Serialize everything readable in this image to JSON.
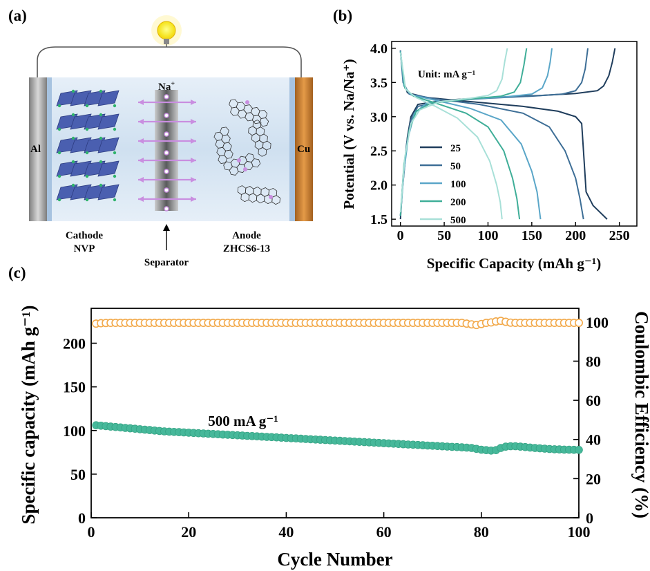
{
  "panels": {
    "a": {
      "label": "(a)",
      "cathode_label": [
        "Cathode",
        "NVP"
      ],
      "anode_label": [
        "Anode",
        "ZHCS6-13"
      ],
      "separator_label": "Separator",
      "ion_label": "Na",
      "ion_charge": "+",
      "left_collector_label": "Al",
      "right_collector_label": "Cu",
      "colors": {
        "electrolyte": "#dbe8f3",
        "al_collector": "#9a9a9a",
        "cu_collector": "#c47a2c",
        "nvp_polyhedra": "#4a5fb0",
        "ion": "#c98ee0",
        "bulb": "#f5e31c"
      },
      "icons": [
        "light-bulb-icon",
        "arrow-up-icon"
      ]
    },
    "b": {
      "label": "(b)"
    },
    "c": {
      "label": "(c)"
    }
  },
  "chart_data": [
    {
      "panel": "b",
      "type": "line",
      "xlabel": "Specific Capacity (mAh g⁻¹)",
      "ylabel": "Potential (V vs. Na/Na⁺)",
      "xlim": [
        -10,
        270
      ],
      "ylim": [
        1.4,
        4.1
      ],
      "xticks": [
        0,
        50,
        100,
        150,
        200,
        250
      ],
      "yticks": [
        1.5,
        2.0,
        2.5,
        3.0,
        3.5,
        4.0
      ],
      "annotation": "Unit: mA g⁻¹",
      "legend_position": "center-left",
      "series": [
        {
          "name": "25",
          "color": "#1f3d5c",
          "charge": [
            [
              0,
              1.5
            ],
            [
              2,
              1.9
            ],
            [
              5,
              2.3
            ],
            [
              8,
              2.7
            ],
            [
              12,
              3.0
            ],
            [
              20,
              3.18
            ],
            [
              50,
              3.24
            ],
            [
              100,
              3.28
            ],
            [
              160,
              3.31
            ],
            [
              200,
              3.34
            ],
            [
              225,
              3.38
            ],
            [
              232,
              3.45
            ],
            [
              238,
              3.6
            ],
            [
              242,
              3.8
            ],
            [
              245,
              4.0
            ]
          ],
          "discharge": [
            [
              0,
              3.97
            ],
            [
              3,
              3.55
            ],
            [
              8,
              3.35
            ],
            [
              30,
              3.28
            ],
            [
              80,
              3.22
            ],
            [
              140,
              3.15
            ],
            [
              180,
              3.08
            ],
            [
              200,
              3.0
            ],
            [
              207,
              2.9
            ],
            [
              209,
              2.5
            ],
            [
              212,
              1.9
            ],
            [
              220,
              1.7
            ],
            [
              236,
              1.5
            ]
          ]
        },
        {
          "name": "50",
          "color": "#3d6e96",
          "charge": [
            [
              0,
              1.55
            ],
            [
              3,
              2.1
            ],
            [
              7,
              2.6
            ],
            [
              12,
              2.95
            ],
            [
              20,
              3.15
            ],
            [
              50,
              3.23
            ],
            [
              100,
              3.27
            ],
            [
              150,
              3.3
            ],
            [
              185,
              3.33
            ],
            [
              200,
              3.38
            ],
            [
              207,
              3.5
            ],
            [
              211,
              3.7
            ],
            [
              214,
              4.0
            ]
          ],
          "discharge": [
            [
              0,
              3.97
            ],
            [
              3,
              3.5
            ],
            [
              10,
              3.33
            ],
            [
              40,
              3.26
            ],
            [
              90,
              3.18
            ],
            [
              140,
              3.05
            ],
            [
              170,
              2.85
            ],
            [
              188,
              2.5
            ],
            [
              200,
              2.1
            ],
            [
              205,
              1.8
            ],
            [
              209,
              1.5
            ]
          ]
        },
        {
          "name": "100",
          "color": "#5aa6c8",
          "charge": [
            [
              0,
              1.55
            ],
            [
              4,
              2.2
            ],
            [
              9,
              2.7
            ],
            [
              16,
              3.05
            ],
            [
              30,
              3.2
            ],
            [
              70,
              3.25
            ],
            [
              120,
              3.29
            ],
            [
              150,
              3.33
            ],
            [
              162,
              3.42
            ],
            [
              168,
              3.6
            ],
            [
              171,
              3.8
            ],
            [
              173,
              4.0
            ]
          ],
          "discharge": [
            [
              0,
              3.96
            ],
            [
              4,
              3.45
            ],
            [
              12,
              3.32
            ],
            [
              40,
              3.24
            ],
            [
              80,
              3.12
            ],
            [
              115,
              2.95
            ],
            [
              138,
              2.6
            ],
            [
              150,
              2.2
            ],
            [
              156,
              1.9
            ],
            [
              160,
              1.5
            ]
          ]
        },
        {
          "name": "200",
          "color": "#3fae98",
          "charge": [
            [
              0,
              1.55
            ],
            [
              4,
              2.3
            ],
            [
              10,
              2.8
            ],
            [
              18,
              3.08
            ],
            [
              35,
              3.2
            ],
            [
              80,
              3.26
            ],
            [
              115,
              3.3
            ],
            [
              130,
              3.36
            ],
            [
              137,
              3.5
            ],
            [
              141,
              3.75
            ],
            [
              144,
              4.0
            ]
          ],
          "discharge": [
            [
              0,
              3.95
            ],
            [
              5,
              3.42
            ],
            [
              15,
              3.3
            ],
            [
              40,
              3.2
            ],
            [
              75,
              3.05
            ],
            [
              100,
              2.85
            ],
            [
              118,
              2.5
            ],
            [
              128,
              2.1
            ],
            [
              133,
              1.8
            ],
            [
              136,
              1.5
            ]
          ]
        },
        {
          "name": "500",
          "color": "#a8e0d8",
          "charge": [
            [
              0,
              1.6
            ],
            [
              5,
              2.4
            ],
            [
              12,
              2.9
            ],
            [
              22,
              3.1
            ],
            [
              45,
              3.22
            ],
            [
              80,
              3.27
            ],
            [
              100,
              3.31
            ],
            [
              110,
              3.38
            ],
            [
              116,
              3.55
            ],
            [
              119,
              3.8
            ],
            [
              122,
              4.0
            ]
          ],
          "discharge": [
            [
              0,
              3.94
            ],
            [
              6,
              3.4
            ],
            [
              18,
              3.28
            ],
            [
              40,
              3.15
            ],
            [
              65,
              2.98
            ],
            [
              88,
              2.7
            ],
            [
              102,
              2.35
            ],
            [
              110,
              2.0
            ],
            [
              114,
              1.75
            ],
            [
              116,
              1.5
            ]
          ]
        }
      ]
    },
    {
      "panel": "c",
      "type": "scatter",
      "xlabel": "Cycle Number",
      "ylabel": "Specific capacity (mAh g⁻¹)",
      "ylabel_right": "Coulombic Efficiency (%)",
      "xlim": [
        0,
        100
      ],
      "ylim": [
        0,
        240
      ],
      "ylim_right": [
        0,
        107
      ],
      "xticks": [
        0,
        20,
        40,
        60,
        80,
        100
      ],
      "yticks": [
        0,
        50,
        100,
        150,
        200
      ],
      "yticks_right": [
        0,
        20,
        40,
        60,
        80,
        100
      ],
      "annotation": "500 mA g⁻¹",
      "series": [
        {
          "name": "Specific capacity",
          "axis": "left",
          "marker": "filled-circle",
          "color": "#46b89a",
          "x": [
            1,
            2,
            3,
            4,
            5,
            6,
            7,
            8,
            9,
            10,
            11,
            12,
            13,
            14,
            15,
            16,
            17,
            18,
            19,
            20,
            21,
            22,
            23,
            24,
            25,
            26,
            27,
            28,
            29,
            30,
            31,
            32,
            33,
            34,
            35,
            36,
            37,
            38,
            39,
            40,
            41,
            42,
            43,
            44,
            45,
            46,
            47,
            48,
            49,
            50,
            51,
            52,
            53,
            54,
            55,
            56,
            57,
            58,
            59,
            60,
            61,
            62,
            63,
            64,
            65,
            66,
            67,
            68,
            69,
            70,
            71,
            72,
            73,
            74,
            75,
            76,
            77,
            78,
            79,
            80,
            81,
            82,
            83,
            84,
            85,
            86,
            87,
            88,
            89,
            90,
            91,
            92,
            93,
            94,
            95,
            96,
            97,
            98,
            99,
            100
          ],
          "values": [
            106,
            105.5,
            105,
            104.5,
            104,
            103.5,
            103,
            102.5,
            102,
            101.5,
            101,
            100.5,
            100,
            99.5,
            99,
            98.7,
            98.4,
            98.1,
            97.8,
            97.5,
            97.2,
            96.9,
            96.6,
            96.3,
            96,
            95.7,
            95.4,
            95.1,
            94.8,
            94.5,
            94.2,
            93.9,
            93.6,
            93.3,
            93,
            92.7,
            92.4,
            92.1,
            91.8,
            91.5,
            91.2,
            90.9,
            90.6,
            90.3,
            90,
            89.7,
            89.4,
            89.1,
            88.8,
            88.5,
            88.2,
            87.9,
            87.6,
            87.3,
            87,
            86.7,
            86.4,
            86.1,
            85.8,
            85.5,
            85.2,
            84.9,
            84.6,
            84.3,
            84,
            83.7,
            83.4,
            83.1,
            82.8,
            82.5,
            82.2,
            81.9,
            81.6,
            81.3,
            81,
            80.7,
            80.4,
            80,
            79,
            78,
            77.5,
            77,
            77.5,
            80,
            81.5,
            82,
            82,
            81.5,
            81,
            80.5,
            80,
            79.6,
            79.2,
            78.8,
            78.5,
            78.3,
            78.1,
            78,
            77.9,
            77.8
          ]
        },
        {
          "name": "Coulombic Efficiency",
          "axis": "right",
          "marker": "open-circle",
          "color": "#f2a94a",
          "x": [
            1,
            2,
            3,
            4,
            5,
            6,
            7,
            8,
            9,
            10,
            11,
            12,
            13,
            14,
            15,
            16,
            17,
            18,
            19,
            20,
            21,
            22,
            23,
            24,
            25,
            26,
            27,
            28,
            29,
            30,
            31,
            32,
            33,
            34,
            35,
            36,
            37,
            38,
            39,
            40,
            41,
            42,
            43,
            44,
            45,
            46,
            47,
            48,
            49,
            50,
            51,
            52,
            53,
            54,
            55,
            56,
            57,
            58,
            59,
            60,
            61,
            62,
            63,
            64,
            65,
            66,
            67,
            68,
            69,
            70,
            71,
            72,
            73,
            74,
            75,
            76,
            77,
            78,
            79,
            80,
            81,
            82,
            83,
            84,
            85,
            86,
            87,
            88,
            89,
            90,
            91,
            92,
            93,
            94,
            95,
            96,
            97,
            98,
            99,
            100
          ],
          "values": [
            99.2,
            99.4,
            99.5,
            99.6,
            99.6,
            99.6,
            99.6,
            99.6,
            99.6,
            99.6,
            99.6,
            99.6,
            99.6,
            99.6,
            99.6,
            99.6,
            99.6,
            99.6,
            99.6,
            99.6,
            99.6,
            99.6,
            99.6,
            99.6,
            99.6,
            99.6,
            99.6,
            99.6,
            99.6,
            99.6,
            99.6,
            99.6,
            99.6,
            99.6,
            99.6,
            99.6,
            99.6,
            99.6,
            99.6,
            99.6,
            99.6,
            99.6,
            99.6,
            99.6,
            99.6,
            99.6,
            99.6,
            99.6,
            99.6,
            99.6,
            99.6,
            99.6,
            99.6,
            99.6,
            99.6,
            99.6,
            99.6,
            99.6,
            99.6,
            99.6,
            99.6,
            99.6,
            99.6,
            99.6,
            99.6,
            99.6,
            99.6,
            99.6,
            99.6,
            99.6,
            99.6,
            99.6,
            99.6,
            99.6,
            99.6,
            99.6,
            99.2,
            98.8,
            98.5,
            99.0,
            99.6,
            99.8,
            100.3,
            100.6,
            100.1,
            99.7,
            99.6,
            99.6,
            99.6,
            99.6,
            99.6,
            99.6,
            99.6,
            99.6,
            99.6,
            99.6,
            99.6,
            99.6,
            99.6,
            99.6
          ]
        }
      ]
    }
  ]
}
